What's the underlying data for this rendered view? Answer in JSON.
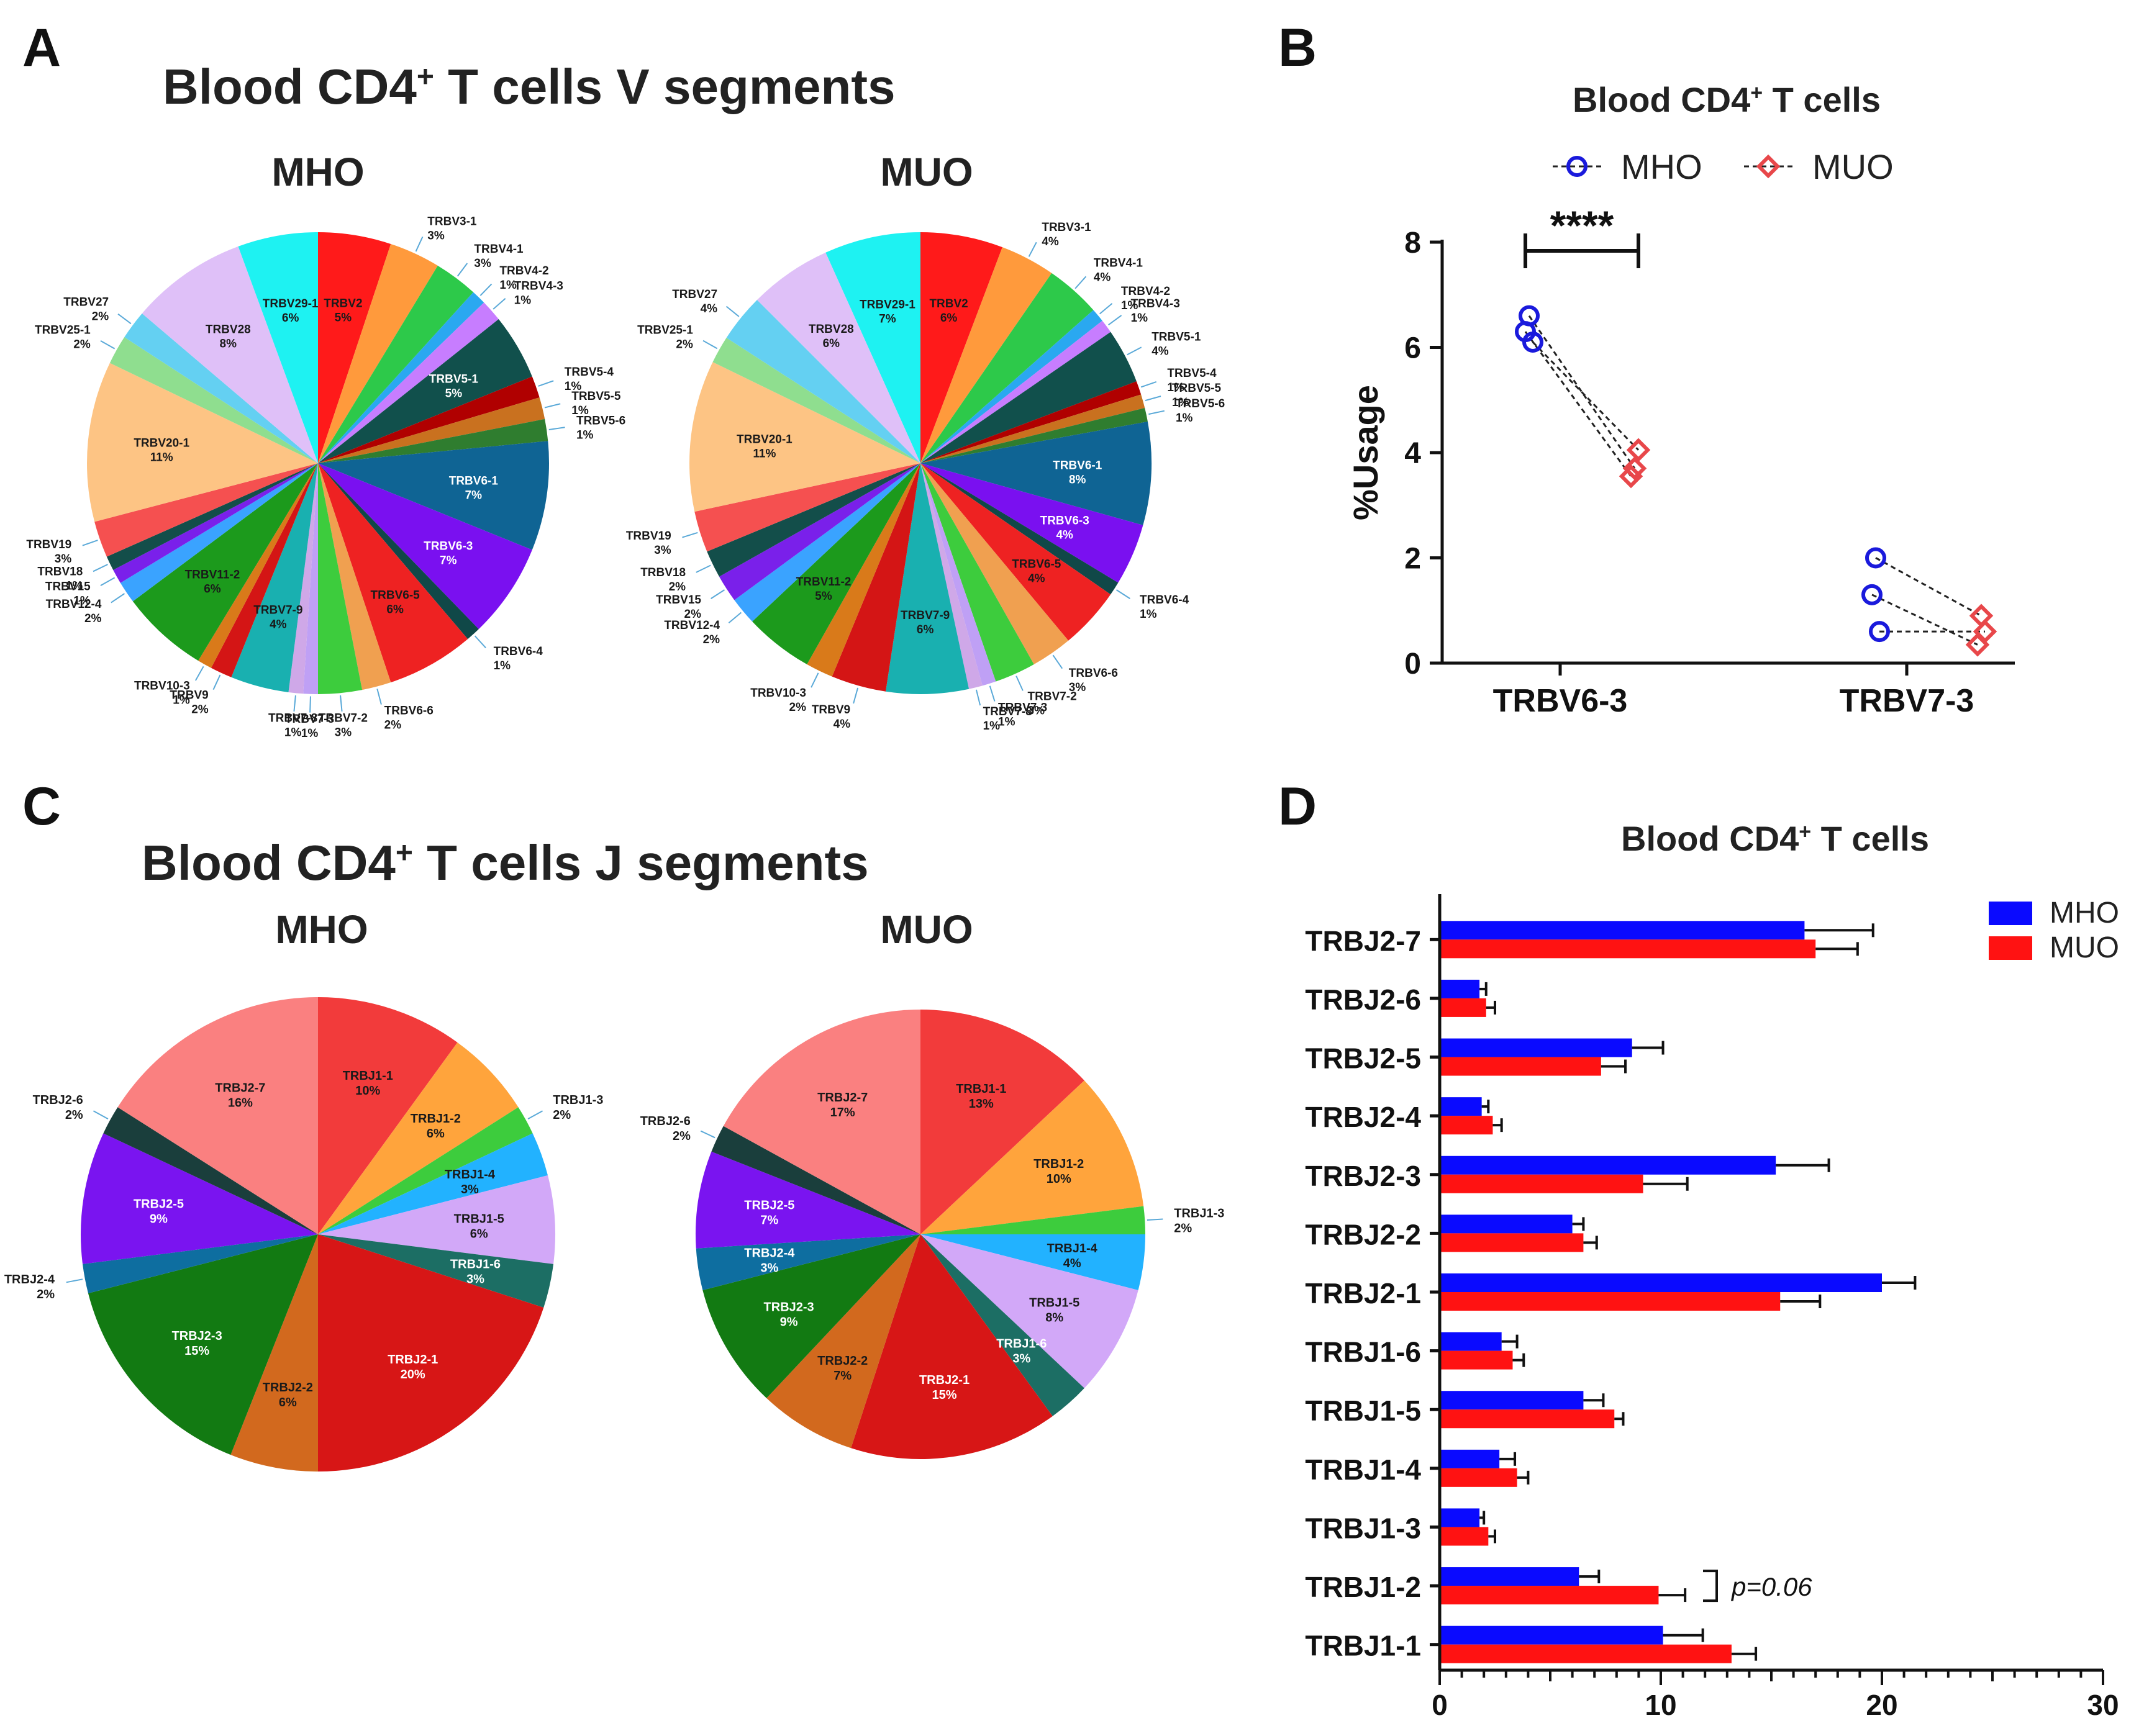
{
  "panels": {
    "A": {
      "letter": "A",
      "title": "Blood CD4",
      "title_sup": "+",
      "title_rest": " T cells V segments"
    },
    "B": {
      "letter": "B"
    },
    "C": {
      "letter": "C",
      "title": "Blood CD4",
      "title_sup": "+",
      "title_rest": " T cells J segments"
    },
    "D": {
      "letter": "D"
    }
  },
  "colors": {
    "mho_line": "#1a1adc",
    "muo_line": "#e8474a",
    "mho_bar": "#0a0aff",
    "muo_bar": "#ff1212"
  },
  "chart_data": [
    {
      "id": "A-MHO",
      "type": "pie",
      "title": "MHO",
      "labels": [
        "TRBV2",
        "TRBV3-1",
        "TRBV4-1",
        "TRBV4-2",
        "TRBV4-3",
        "TRBV5-1",
        "TRBV5-4",
        "TRBV5-5",
        "TRBV5-6",
        "TRBV6-1",
        "TRBV6-3",
        "TRBV6-4",
        "TRBV6-5",
        "TRBV6-6",
        "TRBV7-2",
        "TRBV7-3",
        "TRBV7-8",
        "TRBV7-9",
        "TRBV9",
        "TRBV10-3",
        "TRBV11-2",
        "TRBV12-4",
        "TRBV15",
        "TRBV18",
        "TRBV19",
        "TRBV20-1",
        "TRBV25-1",
        "TRBV27",
        "TRBV28",
        "TRBV29-1"
      ],
      "percent_labels": [
        "5%",
        "3%",
        "3%",
        "1%",
        "1%",
        "5%",
        "1%",
        "1%",
        "1%",
        "7%",
        "7%",
        "1%",
        "6%",
        "2%",
        "3%",
        "1%",
        "1%",
        "4%",
        "2%",
        "1%",
        "6%",
        "2%",
        "1%",
        "1%",
        "3%",
        "11%",
        "2%",
        "2%",
        "8%",
        "6%"
      ],
      "values": [
        5,
        3.5,
        3,
        1,
        1.5,
        4.5,
        1.5,
        1.5,
        1.5,
        7.5,
        6.5,
        1,
        6,
        2,
        3,
        1,
        1,
        4,
        1.5,
        1,
        6,
        1.5,
        1,
        1,
        2.5,
        11,
        2,
        2,
        8,
        5.5
      ],
      "colors": [
        "#ff1a1a",
        "#ff9a3c",
        "#2dc94a",
        "#2aa8f0",
        "#c77dff",
        "#11504c",
        "#b00000",
        "#c9711f",
        "#2f7d2f",
        "#0f6494",
        "#7a10f0",
        "#104848",
        "#ee2222",
        "#f0a050",
        "#3dcc3d",
        "#bfa0f5",
        "#cfa8e8",
        "#19b0b0",
        "#d41515",
        "#d97a1a",
        "#1c9a1c",
        "#3aa3ff",
        "#7a20ea",
        "#134e4a",
        "#f55050",
        "#fdc484",
        "#8fde8f",
        "#64d0f2",
        "#dfc0f8",
        "#1ef2f2"
      ]
    },
    {
      "id": "A-MUO",
      "type": "pie",
      "title": "MUO",
      "labels": [
        "TRBV2",
        "TRBV3-1",
        "TRBV4-1",
        "TRBV4-2",
        "TRBV4-3",
        "TRBV5-1",
        "TRBV5-4",
        "TRBV5-5",
        "TRBV5-6",
        "TRBV6-1",
        "TRBV6-3",
        "TRBV6-4",
        "TRBV6-5",
        "TRBV6-6",
        "TRBV7-2",
        "TRBV7-3",
        "TRBV7-8",
        "TRBV7-9",
        "TRBV9",
        "TRBV10-3",
        "TRBV11-2",
        "TRBV12-4",
        "TRBV15",
        "TRBV18",
        "TRBV19",
        "TRBV20-1",
        "TRBV25-1",
        "TRBV27",
        "TRBV28",
        "TRBV29-1"
      ],
      "percent_labels": [
        "6%",
        "4%",
        "4%",
        "1%",
        "1%",
        "4%",
        "1%",
        "1%",
        "1%",
        "8%",
        "4%",
        "1%",
        "4%",
        "3%",
        "3%",
        "1%",
        "1%",
        "6%",
        "4%",
        "2%",
        "5%",
        "2%",
        "2%",
        "2%",
        "3%",
        "11%",
        "2%",
        "4%",
        "6%",
        "7%"
      ],
      "values": [
        6,
        4,
        4,
        1,
        1,
        4,
        1,
        1,
        1,
        7.5,
        4.5,
        1,
        4.5,
        3,
        3,
        1,
        1,
        6,
        4,
        2,
        5,
        2,
        2,
        2,
        3,
        11,
        2,
        3.5,
        6,
        7
      ],
      "colors": [
        "#ff1a1a",
        "#ff9a3c",
        "#2dc94a",
        "#2aa8f0",
        "#c77dff",
        "#11504c",
        "#b00000",
        "#c9711f",
        "#2f7d2f",
        "#0f6494",
        "#7a10f0",
        "#104848",
        "#ee2222",
        "#f0a050",
        "#3dcc3d",
        "#bfa0f5",
        "#cfa8e8",
        "#19b0b0",
        "#d41515",
        "#d97a1a",
        "#1c9a1c",
        "#3aa3ff",
        "#7a20ea",
        "#134e4a",
        "#f55050",
        "#fdc484",
        "#8fde8f",
        "#64d0f2",
        "#dfc0f8",
        "#1ef2f2"
      ]
    },
    {
      "id": "B",
      "type": "scatter",
      "title": "Blood CD4",
      "title_sup": "+",
      "title_rest": " T cells",
      "ylabel": "%Usage",
      "ylim": [
        0,
        8
      ],
      "yticks": [
        "0",
        "2",
        "4",
        "6",
        "8"
      ],
      "categories": [
        "TRBV6-3",
        "TRBV7-3"
      ],
      "legend": [
        "MHO",
        "MUO"
      ],
      "pairs": [
        {
          "category": "TRBV6-3",
          "mho": [
            6.6,
            6.3,
            6.1
          ],
          "muo": [
            3.7,
            3.55,
            4.05
          ]
        },
        {
          "category": "TRBV7-3",
          "mho": [
            2.0,
            1.3,
            0.6
          ],
          "muo": [
            0.9,
            0.35,
            0.6
          ]
        }
      ],
      "annotation": "****"
    },
    {
      "id": "C-MHO",
      "type": "pie",
      "title": "MHO",
      "labels": [
        "TRBJ1-1",
        "TRBJ1-2",
        "TRBJ1-3",
        "TRBJ1-4",
        "TRBJ1-5",
        "TRBJ1-6",
        "TRBJ2-1",
        "TRBJ2-2",
        "TRBJ2-3",
        "TRBJ2-4",
        "TRBJ2-5",
        "TRBJ2-6",
        "TRBJ2-7"
      ],
      "percent_labels": [
        "10%",
        "6%",
        "2%",
        "3%",
        "6%",
        "3%",
        "20%",
        "6%",
        "15%",
        "2%",
        "9%",
        "2%",
        "16%"
      ],
      "values": [
        10,
        6,
        2,
        3,
        6,
        3,
        20,
        6,
        15,
        2,
        9,
        2,
        16
      ],
      "colors": [
        "#f23b3b",
        "#ffa43c",
        "#3dcc3d",
        "#22b2ff",
        "#d2a8f8",
        "#1c6e64",
        "#d71616",
        "#d2691e",
        "#127a12",
        "#0e6ea0",
        "#7a14f0",
        "#1a3e3c",
        "#fa8080"
      ]
    },
    {
      "id": "C-MUO",
      "type": "pie",
      "title": "MUO",
      "labels": [
        "TRBJ1-1",
        "TRBJ1-2",
        "TRBJ1-3",
        "TRBJ1-4",
        "TRBJ1-5",
        "TRBJ1-6",
        "TRBJ2-1",
        "TRBJ2-2",
        "TRBJ2-3",
        "TRBJ2-4",
        "TRBJ2-5",
        "TRBJ2-6",
        "TRBJ2-7"
      ],
      "percent_labels": [
        "13%",
        "10%",
        "2%",
        "4%",
        "8%",
        "3%",
        "15%",
        "7%",
        "9%",
        "3%",
        "7%",
        "2%",
        "17%"
      ],
      "values": [
        13,
        10,
        2,
        4,
        8,
        3,
        15,
        7,
        9,
        3,
        7,
        2,
        17
      ],
      "colors": [
        "#f23b3b",
        "#ffa43c",
        "#3dcc3d",
        "#22b2ff",
        "#d2a8f8",
        "#1c6e64",
        "#d71616",
        "#d2691e",
        "#127a12",
        "#0e6ea0",
        "#7a14f0",
        "#1a3e3c",
        "#fa8080"
      ]
    },
    {
      "id": "D",
      "type": "bar",
      "orientation": "horizontal",
      "title": "Blood  CD4",
      "title_sup": "+",
      "title_rest": " T cells",
      "categories": [
        "TRBJ2-7",
        "TRBJ2-6",
        "TRBJ2-5",
        "TRBJ2-4",
        "TRBJ2-3",
        "TRBJ2-2",
        "TRBJ2-1",
        "TRBJ1-6",
        "TRBJ1-5",
        "TRBJ1-4",
        "TRBJ1-3",
        "TRBJ1-2",
        "TRBJ1-1"
      ],
      "xlim": [
        0,
        30
      ],
      "xticks": [
        "0",
        "10",
        "20",
        "30"
      ],
      "series": [
        {
          "name": "MHO",
          "values": [
            16.5,
            1.8,
            8.7,
            1.9,
            15.2,
            6.0,
            20.0,
            2.8,
            6.5,
            2.7,
            1.8,
            6.3,
            10.1
          ],
          "errors": [
            3.1,
            0.3,
            1.4,
            0.3,
            2.4,
            0.5,
            1.5,
            0.7,
            0.9,
            0.7,
            0.2,
            0.9,
            1.8
          ]
        },
        {
          "name": "MUO",
          "values": [
            17.0,
            2.1,
            7.3,
            2.4,
            9.2,
            6.5,
            15.4,
            3.3,
            7.9,
            3.5,
            2.2,
            9.9,
            13.2
          ],
          "errors": [
            1.9,
            0.4,
            1.1,
            0.4,
            2.0,
            0.6,
            1.8,
            0.5,
            0.4,
            0.5,
            0.3,
            1.2,
            1.1
          ]
        }
      ],
      "annotation": "p=0.06"
    }
  ]
}
